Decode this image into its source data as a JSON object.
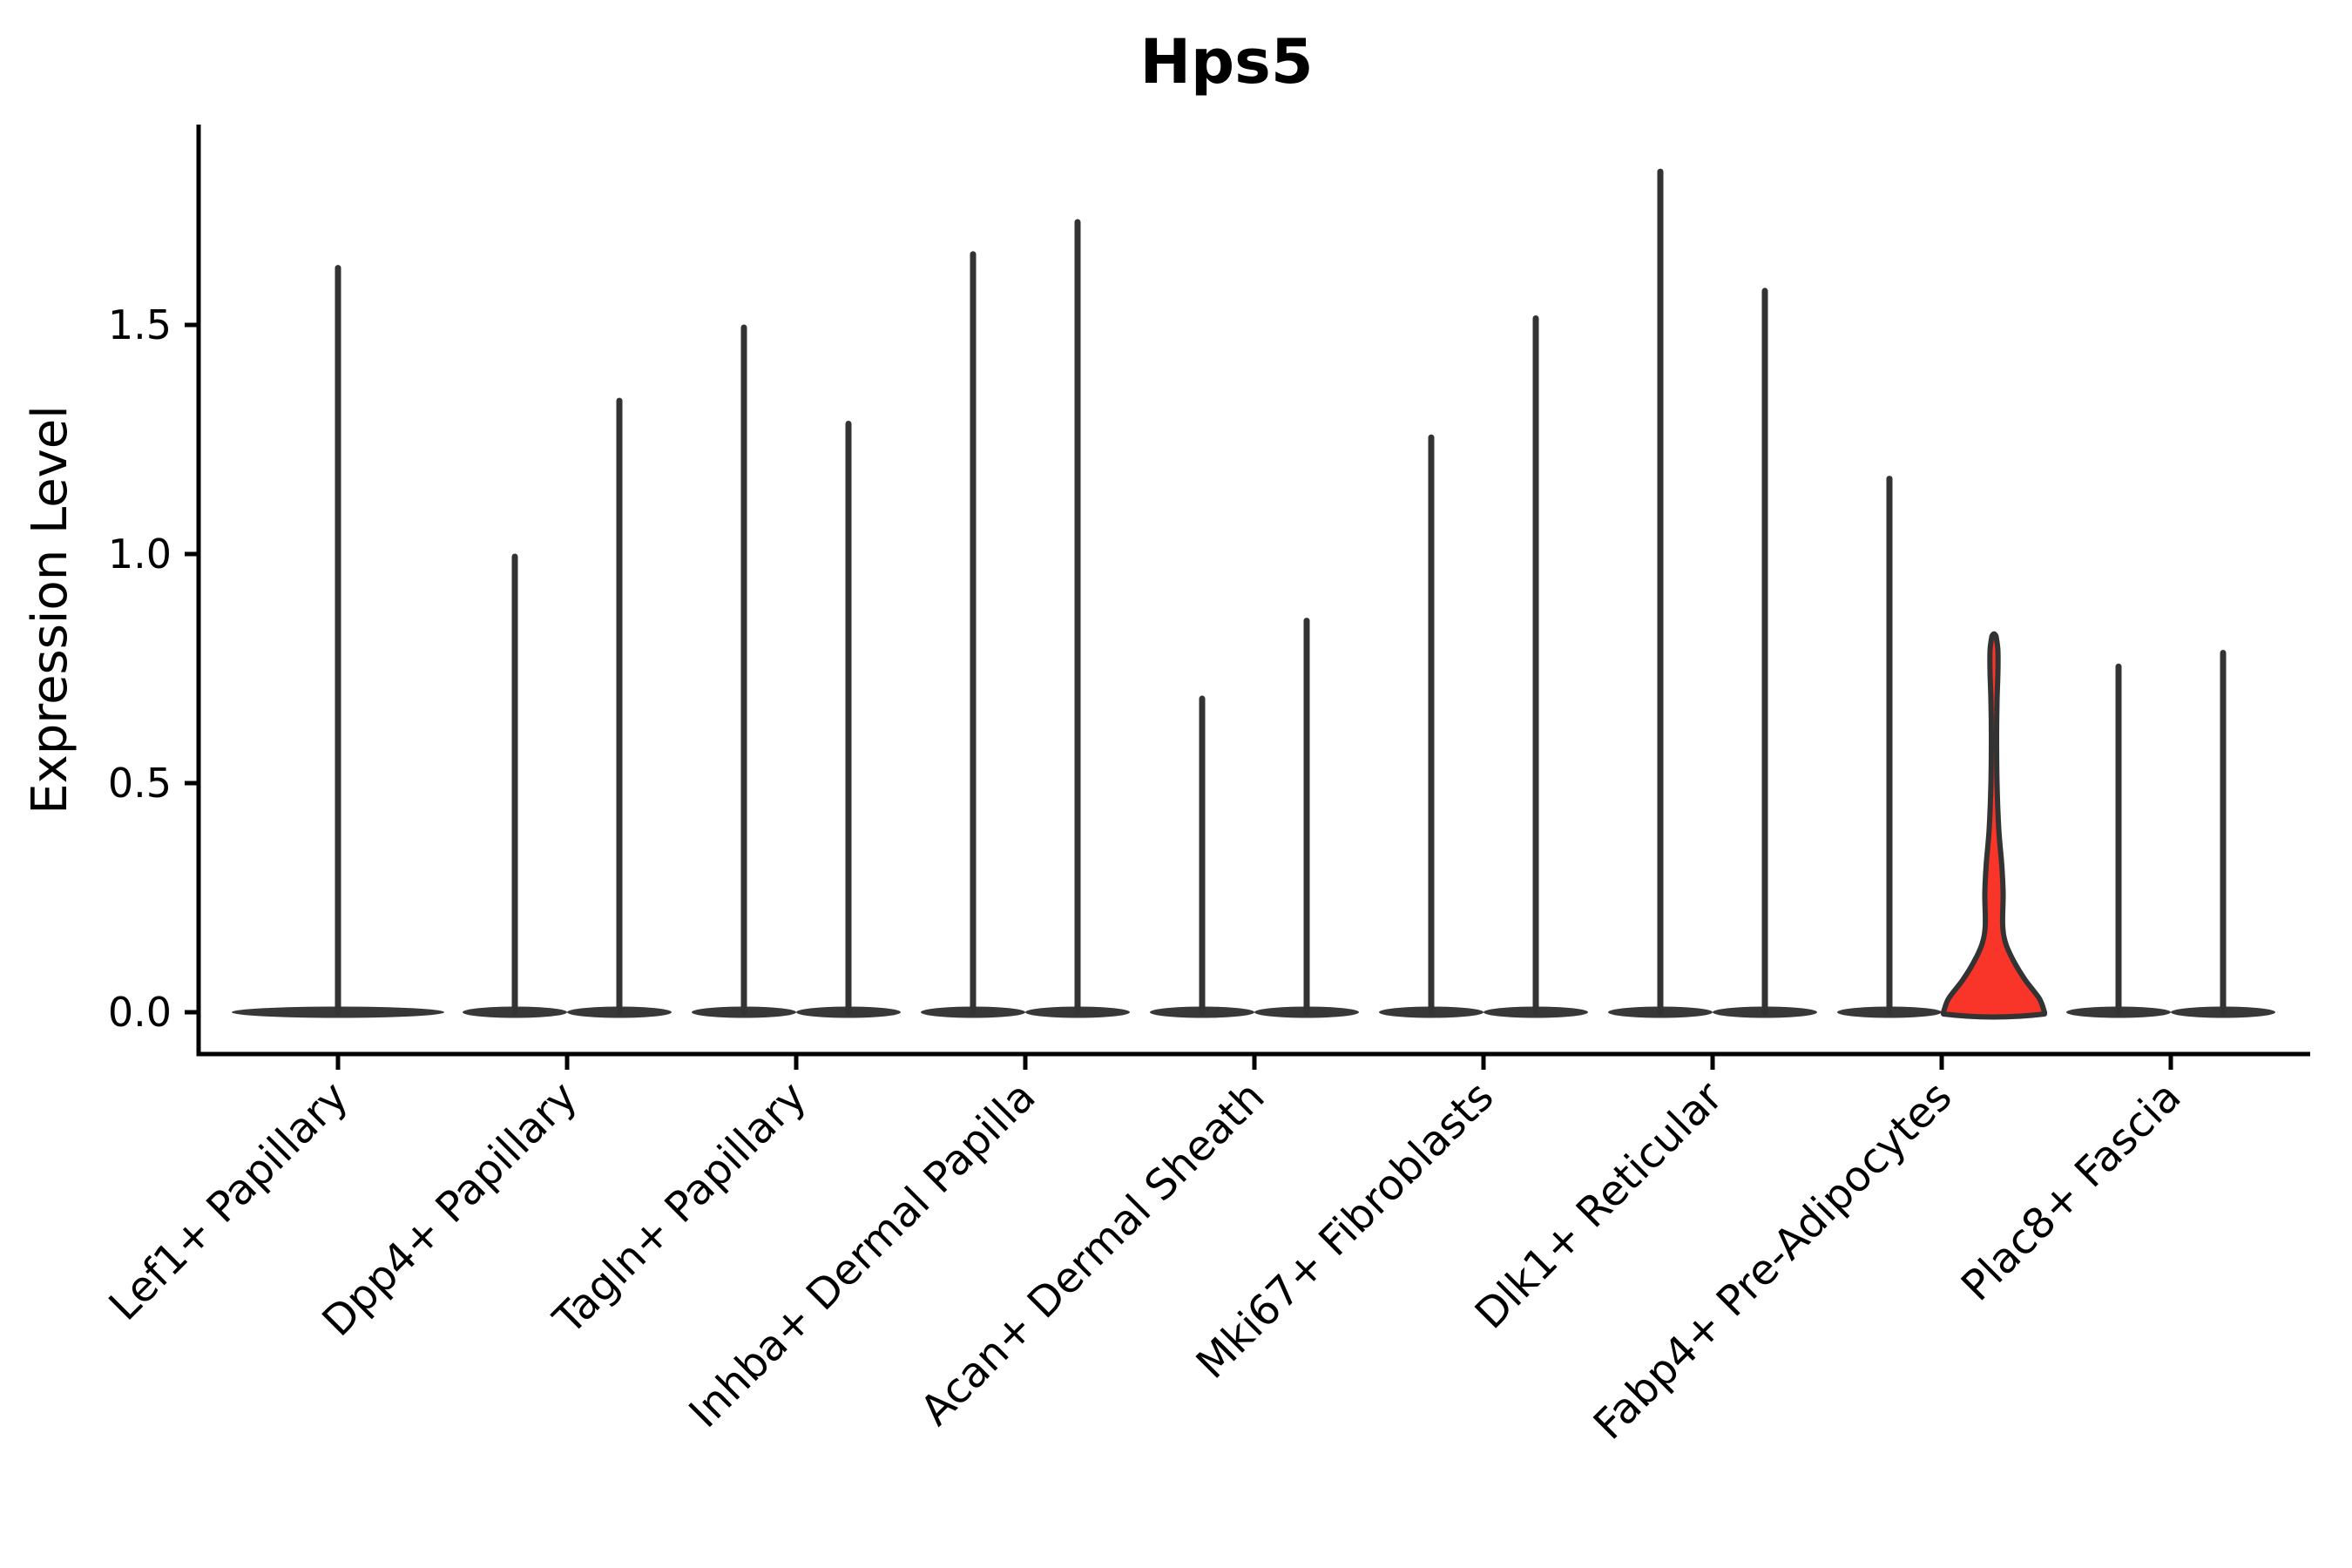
{
  "chart_data": {
    "type": "violin",
    "title": "Hps5",
    "xlabel": "",
    "ylabel": "Expression Level",
    "grid": false,
    "legend": null,
    "background_color": "#ffffff",
    "axis_color": "#000000",
    "violin_stroke_color": "#333333",
    "violin_base_color": "#383838",
    "highlight_fill_color": "#f93428",
    "ylim": [
      -0.09,
      1.94
    ],
    "yticks": [
      0.0,
      0.5,
      1.0,
      1.5
    ],
    "ytick_labels": [
      "0.0",
      "0.5",
      "1.0",
      "1.5"
    ],
    "categories": [
      "Lef1+ Papillary",
      "Dpp4+ Papillary",
      "Tagln+ Papillary",
      "Inhba+ Dermal Papilla",
      "Acan+ Dermal Sheath",
      "Mki67+ Fibroblasts",
      "Dlk1+ Reticular",
      "Fabp4+ Pre-Adipocytes",
      "Plac8+ Fascia"
    ],
    "description": "Violin plot of Hps5 expression level per cell type. Each category holds two narrow violins (the first category a single centered one); nearly all density mass sits at 0 forming a flat dark base with a thin spike up to the maximum expression. The right violin of Fabp4+ Pre-Adipocytes is filled red and shows visible density along its body.",
    "violins": [
      {
        "category_index": 0,
        "position": "center",
        "max_expression": 1.63,
        "fill": "none",
        "highlight": false
      },
      {
        "category_index": 1,
        "position": "left",
        "max_expression": 1.0,
        "fill": "none",
        "highlight": false
      },
      {
        "category_index": 1,
        "position": "right",
        "max_expression": 1.34,
        "fill": "none",
        "highlight": false
      },
      {
        "category_index": 2,
        "position": "left",
        "max_expression": 1.5,
        "fill": "none",
        "highlight": false
      },
      {
        "category_index": 2,
        "position": "right",
        "max_expression": 1.29,
        "fill": "none",
        "highlight": false
      },
      {
        "category_index": 3,
        "position": "left",
        "max_expression": 1.66,
        "fill": "none",
        "highlight": false
      },
      {
        "category_index": 3,
        "position": "right",
        "max_expression": 1.73,
        "fill": "none",
        "highlight": false
      },
      {
        "category_index": 4,
        "position": "left",
        "max_expression": 0.69,
        "fill": "none",
        "highlight": false
      },
      {
        "category_index": 4,
        "position": "right",
        "max_expression": 0.86,
        "fill": "none",
        "highlight": false
      },
      {
        "category_index": 5,
        "position": "left",
        "max_expression": 1.26,
        "fill": "none",
        "highlight": false
      },
      {
        "category_index": 5,
        "position": "right",
        "max_expression": 1.52,
        "fill": "none",
        "highlight": false
      },
      {
        "category_index": 6,
        "position": "left",
        "max_expression": 1.84,
        "fill": "none",
        "highlight": false
      },
      {
        "category_index": 6,
        "position": "right",
        "max_expression": 1.58,
        "fill": "none",
        "highlight": false
      },
      {
        "category_index": 7,
        "position": "left",
        "max_expression": 1.17,
        "fill": "none",
        "highlight": false
      },
      {
        "category_index": 7,
        "position": "right",
        "max_expression": 0.82,
        "fill": "#f93428",
        "highlight": true,
        "width_profile": [
          [
            0.0,
            58
          ],
          [
            0.03,
            52
          ],
          [
            0.07,
            36
          ],
          [
            0.11,
            23
          ],
          [
            0.15,
            13.5
          ],
          [
            0.19,
            10
          ],
          [
            0.26,
            10.5
          ],
          [
            0.32,
            9
          ],
          [
            0.4,
            5.5
          ],
          [
            0.5,
            3.5
          ],
          [
            0.6,
            3
          ],
          [
            0.68,
            3.5
          ],
          [
            0.74,
            4.5
          ],
          [
            0.79,
            4.5
          ],
          [
            0.82,
            2.5
          ]
        ]
      },
      {
        "category_index": 8,
        "position": "left",
        "max_expression": 0.76,
        "fill": "none",
        "highlight": false
      },
      {
        "category_index": 8,
        "position": "right",
        "max_expression": 0.79,
        "fill": "none",
        "highlight": false
      }
    ]
  }
}
